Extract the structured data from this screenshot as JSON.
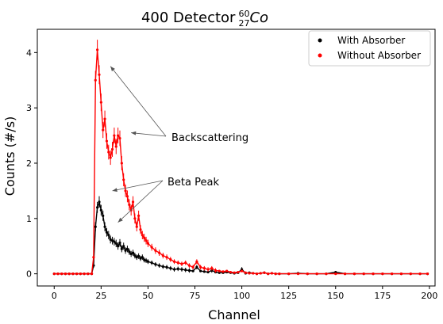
{
  "chart_data": {
    "type": "scatter",
    "title": "400 Detector",
    "title_isotope": {
      "mass": "60",
      "atomic": "27",
      "symbol": "Co"
    },
    "xlabel": "Channel",
    "ylabel": "Counts (#/s)",
    "xlim": [
      -9,
      203
    ],
    "ylim": [
      -0.22,
      4.42
    ],
    "xticks": [
      0,
      25,
      50,
      75,
      100,
      125,
      150,
      175,
      200
    ],
    "yticks": [
      0,
      1,
      2,
      3,
      4
    ],
    "grid": false,
    "legend_position": "top-right",
    "annotations": [
      {
        "text": "Backscattering",
        "targets": [
          [
            30,
            3.75
          ],
          [
            41,
            2.55
          ]
        ]
      },
      {
        "text": "Beta Peak",
        "targets": [
          [
            31,
            1.5
          ],
          [
            34,
            0.93
          ]
        ]
      }
    ],
    "series": [
      {
        "name": "With Absorber",
        "color": "#000000",
        "x": [
          0,
          2,
          4,
          6,
          8,
          10,
          12,
          14,
          16,
          18,
          20,
          21,
          22,
          23,
          24,
          25,
          26,
          27,
          28,
          29,
          30,
          31,
          32,
          33,
          34,
          35,
          36,
          37,
          38,
          39,
          40,
          41,
          42,
          43,
          44,
          45,
          46,
          47,
          48,
          49,
          50,
          52,
          54,
          56,
          58,
          60,
          62,
          64,
          66,
          68,
          70,
          72,
          74,
          76,
          78,
          80,
          82,
          84,
          86,
          88,
          90,
          92,
          94,
          96,
          98,
          100,
          102,
          104,
          106,
          108,
          110,
          112,
          114,
          116,
          118,
          120,
          125,
          130,
          135,
          140,
          145,
          150,
          155,
          160,
          165,
          170,
          175,
          180,
          185,
          190,
          195,
          199
        ],
        "y": [
          0,
          0,
          0,
          0,
          0,
          0,
          0,
          0,
          0,
          0,
          0,
          0.15,
          0.85,
          1.2,
          1.3,
          1.15,
          1.05,
          0.85,
          0.75,
          0.7,
          0.62,
          0.6,
          0.58,
          0.55,
          0.5,
          0.56,
          0.45,
          0.5,
          0.42,
          0.45,
          0.4,
          0.36,
          0.38,
          0.33,
          0.3,
          0.32,
          0.28,
          0.3,
          0.25,
          0.24,
          0.22,
          0.2,
          0.17,
          0.15,
          0.13,
          0.12,
          0.1,
          0.08,
          0.09,
          0.08,
          0.07,
          0.06,
          0.05,
          0.12,
          0.05,
          0.04,
          0.03,
          0.06,
          0.03,
          0.02,
          0.02,
          0.03,
          0.02,
          0.01,
          0.02,
          0.08,
          0.01,
          0.02,
          0.01,
          0.0,
          0.01,
          0.02,
          0.0,
          0.01,
          0.0,
          0.0,
          0.0,
          0.01,
          0.0,
          0.0,
          0.0,
          0.03,
          0.0,
          0.0,
          0.0,
          0.0,
          0.0,
          0.0,
          0.0,
          0.0,
          0.0,
          0.0
        ]
      },
      {
        "name": "Without Absorber",
        "color": "#ff0000",
        "x": [
          0,
          2,
          4,
          6,
          8,
          10,
          12,
          14,
          16,
          18,
          20,
          21,
          22,
          23,
          24,
          25,
          26,
          27,
          28,
          29,
          30,
          31,
          32,
          33,
          34,
          35,
          36,
          37,
          38,
          39,
          40,
          41,
          42,
          43,
          44,
          45,
          46,
          47,
          48,
          49,
          50,
          52,
          54,
          56,
          58,
          60,
          62,
          64,
          66,
          68,
          70,
          72,
          74,
          76,
          78,
          80,
          82,
          84,
          86,
          88,
          90,
          92,
          94,
          96,
          98,
          100,
          102,
          104,
          106,
          108,
          110,
          112,
          114,
          116,
          118,
          120,
          125,
          130,
          135,
          140,
          145,
          150,
          155,
          160,
          165,
          170,
          175,
          180,
          185,
          190,
          195,
          199
        ],
        "y": [
          0,
          0,
          0,
          0,
          0,
          0,
          0,
          0,
          0,
          0,
          0,
          0.3,
          3.5,
          4.05,
          3.6,
          3.1,
          2.6,
          2.8,
          2.4,
          2.2,
          2.1,
          2.25,
          2.5,
          2.3,
          2.5,
          2.45,
          2.0,
          1.7,
          1.5,
          1.4,
          1.25,
          1.15,
          1.3,
          1.0,
          0.85,
          1.05,
          0.8,
          0.7,
          0.65,
          0.6,
          0.55,
          0.48,
          0.42,
          0.38,
          0.33,
          0.3,
          0.26,
          0.22,
          0.2,
          0.18,
          0.2,
          0.15,
          0.12,
          0.22,
          0.12,
          0.1,
          0.08,
          0.1,
          0.06,
          0.05,
          0.04,
          0.05,
          0.03,
          0.02,
          0.03,
          0.05,
          0.02,
          0.01,
          0.01,
          0.0,
          0.01,
          0.02,
          0.0,
          0.01,
          0.0,
          0.0,
          0.0,
          0.0,
          0.0,
          0.0,
          0.0,
          0.0,
          0.0,
          0.0,
          0.0,
          0.0,
          0.0,
          0.0,
          0.0,
          0.0,
          0.0,
          0.0
        ]
      }
    ]
  }
}
